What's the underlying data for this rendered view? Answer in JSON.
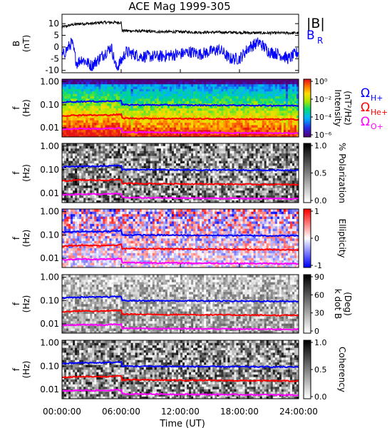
{
  "chart_data": {
    "type": "multi-panel time series and spectrogram",
    "title": "ACE Mag 1999-305",
    "xlabel": "Time (UT)",
    "xlim": [
      0,
      24
    ],
    "xticks": [
      "00:00:00",
      "06:00:00",
      "12:00:00",
      "18:00:00",
      "24:00:00"
    ],
    "colors": {
      "B_total": "#000000",
      "B_R": "#0000ff",
      "H_plus": "#0000ff",
      "He_plus": "#ff0000",
      "O_plus": "#ff00ff"
    },
    "top_panel": {
      "ylabel": "B",
      "yunit": "(nT)",
      "ylim": [
        -11,
        14
      ],
      "yticks": [
        "10",
        "5",
        "0",
        "-5",
        "-10"
      ],
      "legend": {
        "total": "|B|",
        "radial": "B",
        "radial_sub": "R"
      },
      "series": [
        {
          "name": "|B|",
          "x": [
            0,
            0.5,
            1,
            2,
            3,
            4,
            5,
            6,
            6.1,
            8,
            10,
            12,
            14,
            16,
            18,
            20,
            22,
            24
          ],
          "values": [
            8.5,
            9,
            9.5,
            10,
            10,
            10.5,
            10.5,
            10.5,
            7,
            6.8,
            6.5,
            6.5,
            6.3,
            6.3,
            6.2,
            6.0,
            6.0,
            6.0
          ]
        },
        {
          "name": "B_R",
          "x": [
            0,
            1,
            1.5,
            2,
            3,
            4,
            5,
            5.5,
            6,
            6.5,
            8,
            10,
            12,
            13,
            14,
            15,
            16,
            17,
            18,
            19,
            20,
            21,
            22,
            23,
            24
          ],
          "values": [
            -4,
            2,
            -7,
            -5,
            -8,
            -4,
            0,
            -9,
            -6,
            -2,
            -4,
            -4,
            -3,
            -2,
            -3,
            -2,
            -1,
            -5,
            -5,
            0,
            2,
            -2,
            -3,
            -5,
            -2
          ]
        }
      ]
    },
    "gyro_lines": {
      "H_plus": {
        "label": "Ω",
        "sub": "H+",
        "x": [
          0,
          2,
          4,
          6,
          6.1,
          12,
          18,
          24
        ],
        "values": [
          0.13,
          0.14,
          0.14,
          0.15,
          0.1,
          0.097,
          0.095,
          0.092
        ]
      },
      "He_plus": {
        "label": "Ω",
        "sub": "He+",
        "x": [
          0,
          2,
          4,
          6,
          6.1,
          12,
          18,
          24
        ],
        "values": [
          0.033,
          0.036,
          0.035,
          0.038,
          0.026,
          0.025,
          0.024,
          0.023
        ]
      },
      "O_plus": {
        "label": "Ω",
        "sub": "O+",
        "x": [
          0,
          2,
          4,
          6,
          6.1,
          12,
          18,
          24
        ],
        "values": [
          0.0085,
          0.0092,
          0.009,
          0.0095,
          0.0065,
          0.0062,
          0.006,
          0.0058
        ]
      }
    },
    "freq_axis": {
      "ylabel": "f",
      "yunit": "(Hz)",
      "scale": "log",
      "ylim": [
        0.004,
        1.3
      ],
      "yticks": [
        "1.00",
        "0.10",
        "0.01"
      ]
    },
    "spectrogram_panels": [
      {
        "id": "intensity",
        "colorbar_label": "Intensity",
        "colorbar_unit": "(nT²/Hz)",
        "colormap": "rainbow",
        "colorbar_ticks": [
          "10⁰",
          "10⁻²",
          "10⁻⁴",
          "10⁻⁶"
        ],
        "show_gyro_labels": true
      },
      {
        "id": "polarization",
        "colorbar_label": "% Polarization",
        "colorbar_unit": "",
        "colormap": "grayscale",
        "colorbar_ticks": [
          "1.0",
          "0.5",
          "0.0"
        ],
        "show_gyro_labels": false
      },
      {
        "id": "ellipticity",
        "colorbar_label": "Ellipticity",
        "colorbar_unit": "",
        "colormap": "bluewhitered",
        "colorbar_ticks": [
          "1",
          "0",
          "-1"
        ],
        "show_gyro_labels": false
      },
      {
        "id": "kdotb",
        "colorbar_label": "k dot B",
        "colorbar_unit": "(Deg)",
        "colormap": "grayscale",
        "colorbar_ticks": [
          "90",
          "60",
          "30",
          "0"
        ],
        "show_gyro_labels": false
      },
      {
        "id": "coherency",
        "colorbar_label": "Coherency",
        "colorbar_unit": "",
        "colormap": "grayscale",
        "colorbar_ticks": [
          "1.0",
          "0.5",
          "0.0"
        ],
        "show_gyro_labels": false
      }
    ]
  }
}
